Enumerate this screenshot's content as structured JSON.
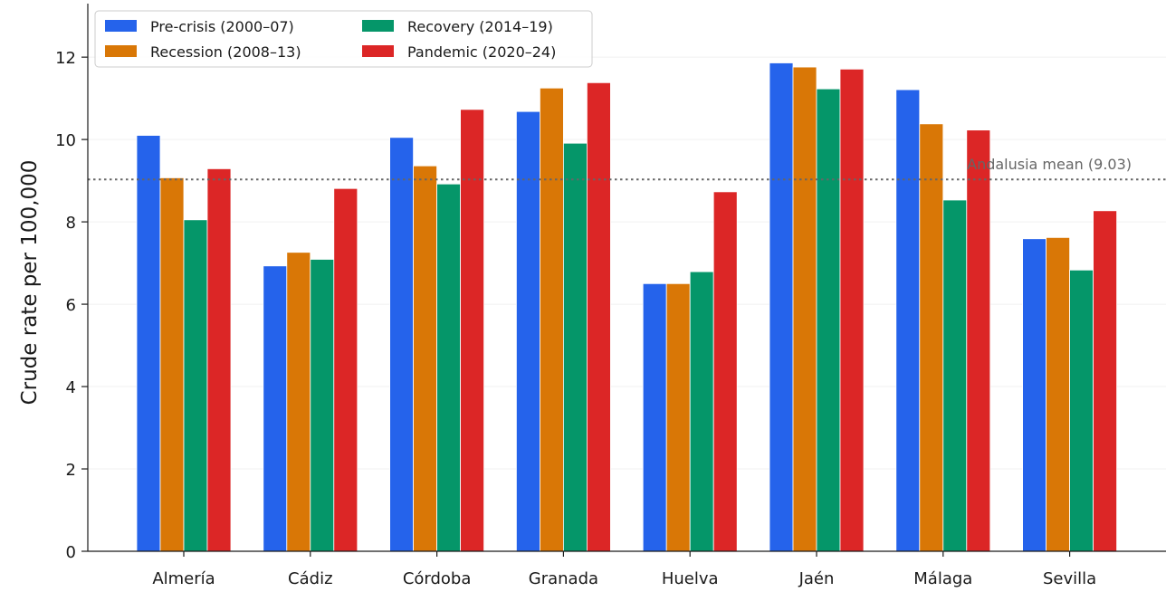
{
  "chart_data": {
    "type": "bar",
    "title": "",
    "xlabel": "",
    "ylabel": "Crude rate per 100,000",
    "categories": [
      "Almería",
      "Cádiz",
      "Córdoba",
      "Granada",
      "Huelva",
      "Jaén",
      "Málaga",
      "Sevilla"
    ],
    "series": [
      {
        "name": "Pre-crisis (2000–07)",
        "color": "#2563eb",
        "values": [
          10.1,
          6.93,
          10.05,
          10.68,
          6.5,
          11.86,
          11.21,
          7.59
        ]
      },
      {
        "name": "Recession (2008–13)",
        "color": "#d97706",
        "values": [
          9.07,
          7.26,
          9.36,
          11.25,
          6.5,
          11.76,
          10.38,
          7.62
        ]
      },
      {
        "name": "Recovery (2014–19)",
        "color": "#059669",
        "values": [
          8.05,
          7.09,
          8.92,
          9.91,
          6.79,
          11.23,
          8.53,
          6.83
        ]
      },
      {
        "name": "Pandemic (2020–24)",
        "color": "#dc2626",
        "values": [
          9.29,
          8.81,
          10.73,
          11.38,
          8.73,
          11.71,
          10.23,
          8.27
        ]
      }
    ],
    "ylim": [
      0,
      13.3
    ],
    "yticks": [
      0,
      2,
      4,
      6,
      8,
      10,
      12
    ],
    "grid": "horizontal-light",
    "legend_position": "top-left",
    "reference_line": {
      "value": 9.03,
      "label": "Andalusia mean (9.03)",
      "color": "#666666"
    }
  }
}
